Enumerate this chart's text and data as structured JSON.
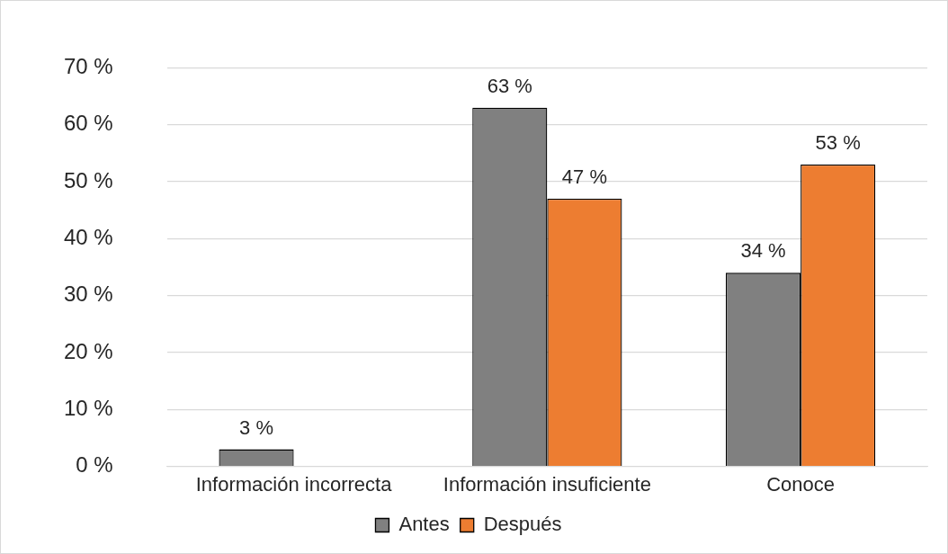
{
  "chart_data": {
    "type": "bar",
    "categories": [
      "Información incorrecta",
      "Información insuficiente",
      "Conoce"
    ],
    "series": [
      {
        "name": "Antes",
        "color": "#808080",
        "values": [
          3,
          63,
          34
        ],
        "value_labels": [
          "3 %",
          "63 %",
          "34 %"
        ]
      },
      {
        "name": "Después",
        "color": "#ed7d31",
        "values": [
          null,
          47,
          53
        ],
        "value_labels": [
          null,
          "47 %",
          "53 %"
        ]
      }
    ],
    "ylim": [
      0,
      70
    ],
    "yticks": [
      {
        "value": 0,
        "label": "0 %"
      },
      {
        "value": 10,
        "label": "10 %"
      },
      {
        "value": 20,
        "label": "20 %"
      },
      {
        "value": 30,
        "label": "30 %"
      },
      {
        "value": 40,
        "label": "40 %"
      },
      {
        "value": 50,
        "label": "50 %"
      },
      {
        "value": 60,
        "label": "60 %"
      },
      {
        "value": 70,
        "label": "70 %"
      }
    ],
    "grid": "y",
    "legend": "bottom"
  }
}
